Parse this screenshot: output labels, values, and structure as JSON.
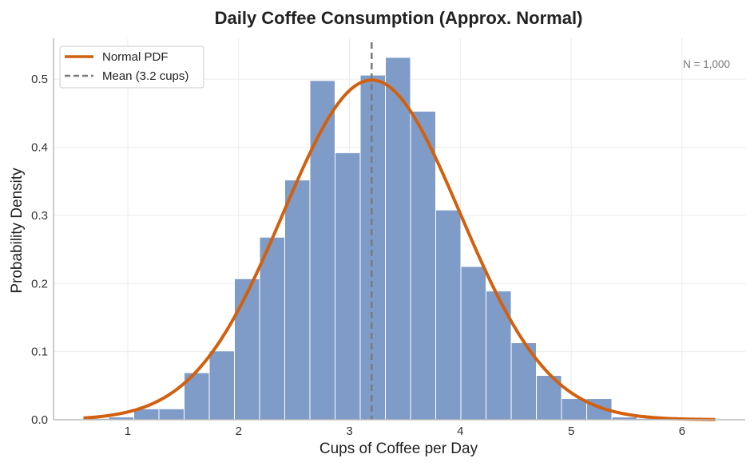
{
  "chart_data": {
    "type": "bar",
    "title": "Daily Coffee Consumption (Approx. Normal)",
    "xlabel": "Cups of Coffee per Day",
    "ylabel": "Probability Density",
    "xlim": [
      0.33,
      6.57
    ],
    "ylim": [
      0,
      0.56
    ],
    "xticks": [
      1,
      2,
      3,
      4,
      5,
      6
    ],
    "yticks": [
      0.0,
      0.1,
      0.2,
      0.3,
      0.4,
      0.5
    ],
    "xtick_labels": [
      "1",
      "2",
      "3",
      "4",
      "5",
      "6"
    ],
    "ytick_labels": [
      "0.0",
      "0.1",
      "0.2",
      "0.3",
      "0.4",
      "0.5"
    ],
    "grid": true,
    "legend_position": "top-left",
    "bin_width": 0.227,
    "bins": [
      {
        "left": 0.6,
        "density": 0.002
      },
      {
        "left": 0.827,
        "density": 0.004
      },
      {
        "left": 1.054,
        "density": 0.016
      },
      {
        "left": 1.281,
        "density": 0.016
      },
      {
        "left": 1.508,
        "density": 0.069
      },
      {
        "left": 1.735,
        "density": 0.101
      },
      {
        "left": 1.962,
        "density": 0.207
      },
      {
        "left": 2.189,
        "density": 0.268
      },
      {
        "left": 2.416,
        "density": 0.352
      },
      {
        "left": 2.643,
        "density": 0.498
      },
      {
        "left": 2.87,
        "density": 0.392
      },
      {
        "left": 3.097,
        "density": 0.506
      },
      {
        "left": 3.324,
        "density": 0.532
      },
      {
        "left": 3.551,
        "density": 0.453
      },
      {
        "left": 3.778,
        "density": 0.308
      },
      {
        "left": 4.005,
        "density": 0.225
      },
      {
        "left": 4.232,
        "density": 0.189
      },
      {
        "left": 4.459,
        "density": 0.113
      },
      {
        "left": 4.686,
        "density": 0.065
      },
      {
        "left": 4.913,
        "density": 0.031
      },
      {
        "left": 5.14,
        "density": 0.031
      },
      {
        "left": 5.367,
        "density": 0.004
      },
      {
        "left": 5.594,
        "density": 0.002
      }
    ],
    "pdf": {
      "name": "Normal PDF",
      "mean": 3.2,
      "std": 0.8,
      "x_range": [
        0.6,
        6.3
      ]
    },
    "mean_line": {
      "name": "Mean (3.2 cups)",
      "x": 3.2
    },
    "annotation": "N = 1,000",
    "colors": {
      "bars": "#7f9cc8",
      "bar_edge": "#ffffff",
      "pdf": "#d1600f",
      "mean": "#7a7a7a",
      "grid": "#ebebeb",
      "axis": "#bbbbbb"
    }
  }
}
